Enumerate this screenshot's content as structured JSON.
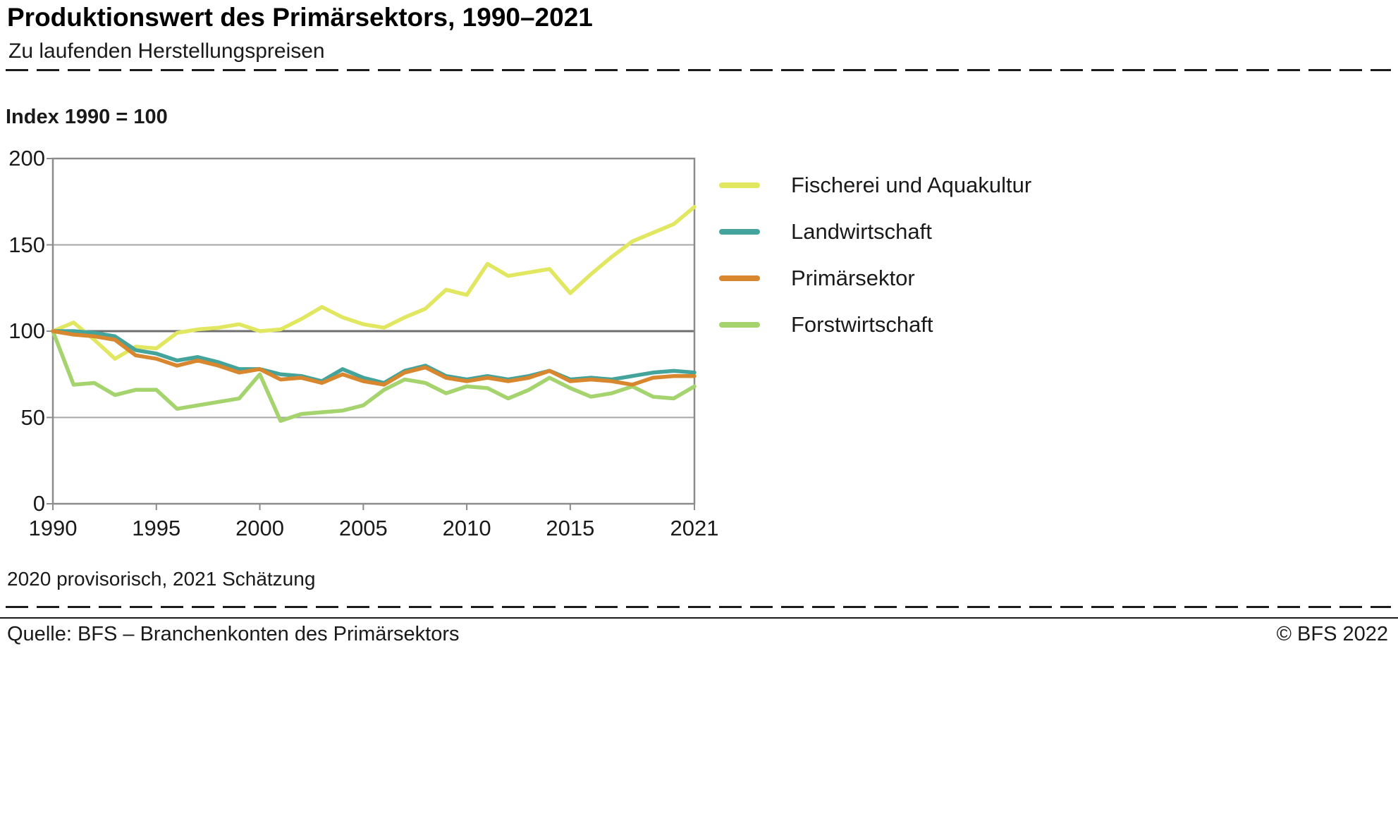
{
  "header": {
    "title": "Produktionswert des Primärsektors, 1990–2021",
    "subtitle": "Zu laufenden Herstellungspreisen"
  },
  "chart": {
    "index_label": "Index 1990 = 100",
    "footnote": "2020 provisorisch, 2021 Schätzung"
  },
  "footer": {
    "source": "Quelle: BFS – Branchenkonten des Primärsektors",
    "copyright": "© BFS 2022"
  },
  "chart_data": {
    "type": "line",
    "title": "Produktionswert des Primärsektors, 1990–2021",
    "subtitle": "Zu laufenden Herstellungspreisen",
    "ylabel": "Index 1990 = 100",
    "footnote": "2020 provisorisch, 2021 Schätzung",
    "xlim": [
      1990,
      2021
    ],
    "ylim": [
      0,
      200
    ],
    "x_ticks": [
      1990,
      1995,
      2000,
      2005,
      2010,
      2015,
      2021
    ],
    "y_ticks": [
      0,
      50,
      100,
      150,
      200
    ],
    "grid": true,
    "emphasized_gridline": 100,
    "legend_position": "right",
    "years": [
      1990,
      1991,
      1992,
      1993,
      1994,
      1995,
      1996,
      1997,
      1998,
      1999,
      2000,
      2001,
      2002,
      2003,
      2004,
      2005,
      2006,
      2007,
      2008,
      2009,
      2010,
      2011,
      2012,
      2013,
      2014,
      2015,
      2016,
      2017,
      2018,
      2019,
      2020,
      2021
    ],
    "series": [
      {
        "name": "Fischerei und Aquakultur",
        "color": "#e2e762",
        "values": [
          100,
          105,
          95,
          84,
          91,
          90,
          99,
          101,
          102,
          104,
          100,
          101,
          107,
          114,
          108,
          104,
          102,
          108,
          113,
          124,
          121,
          139,
          132,
          134,
          136,
          122,
          133,
          143,
          152,
          157,
          162,
          172
        ]
      },
      {
        "name": "Landwirtschaft",
        "color": "#44a49b",
        "values": [
          100,
          100,
          99,
          97,
          89,
          87,
          83,
          85,
          82,
          78,
          78,
          75,
          74,
          71,
          78,
          73,
          70,
          77,
          80,
          74,
          72,
          74,
          72,
          74,
          77,
          72,
          73,
          72,
          74,
          76,
          77,
          76
        ]
      },
      {
        "name": "Primärsektor",
        "color": "#d8872f",
        "values": [
          100,
          98,
          97,
          95,
          86,
          84,
          80,
          83,
          80,
          76,
          78,
          72,
          73,
          70,
          75,
          71,
          69,
          76,
          79,
          73,
          71,
          73,
          71,
          73,
          77,
          71,
          72,
          71,
          69,
          73,
          74,
          74
        ]
      },
      {
        "name": "Forstwirtschaft",
        "color": "#a5d36d",
        "values": [
          100,
          69,
          70,
          63,
          66,
          66,
          55,
          57,
          59,
          61,
          75,
          48,
          52,
          53,
          54,
          57,
          66,
          72,
          70,
          64,
          68,
          67,
          61,
          66,
          73,
          67,
          62,
          64,
          68,
          62,
          61,
          68
        ]
      }
    ]
  }
}
